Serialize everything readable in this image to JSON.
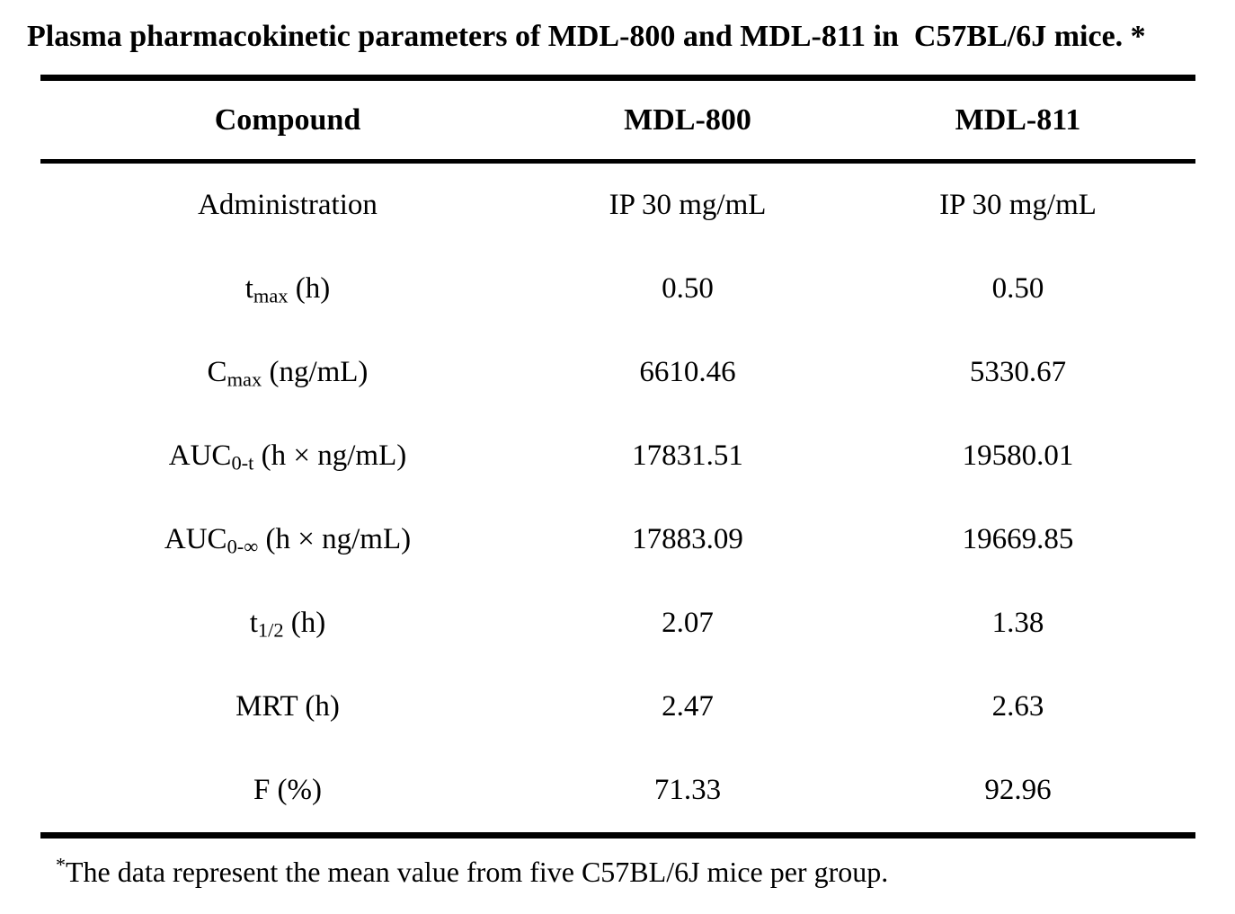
{
  "title": "Plasma pharmacokinetic parameters of MDL-800 and MDL-811 in  C57BL/6J mice. *",
  "header": {
    "compound": "Compound",
    "col_mdl800": "MDL-800",
    "col_mdl811": "MDL-811"
  },
  "rows": [
    {
      "label": {
        "base": "Administration",
        "sub": "",
        "rest": ""
      },
      "mdl800": "IP 30 mg/mL",
      "mdl811": "IP 30 mg/mL"
    },
    {
      "label": {
        "base": "t",
        "sub": "max",
        "rest": " (h)"
      },
      "mdl800": "0.50",
      "mdl811": "0.50"
    },
    {
      "label": {
        "base": "C",
        "sub": "max",
        "rest": " (ng/mL)"
      },
      "mdl800": "6610.46",
      "mdl811": "5330.67"
    },
    {
      "label": {
        "base": "AUC",
        "sub": "0-t",
        "rest": " (h × ng/mL)"
      },
      "mdl800": "17831.51",
      "mdl811": "19580.01"
    },
    {
      "label": {
        "base": "AUC",
        "sub": "0-∞",
        "rest": " (h × ng/mL)"
      },
      "mdl800": "17883.09",
      "mdl811": "19669.85"
    },
    {
      "label": {
        "base": "t",
        "sub": "1/2",
        "rest": " (h)"
      },
      "mdl800": "2.07",
      "mdl811": "1.38"
    },
    {
      "label": {
        "base": "MRT (h)",
        "sub": "",
        "rest": ""
      },
      "mdl800": "2.47",
      "mdl811": "2.63"
    },
    {
      "label": {
        "base": "F (%)",
        "sub": "",
        "rest": ""
      },
      "mdl800": "71.33",
      "mdl811": "92.96"
    }
  ],
  "footnote": {
    "marker": "*",
    "text": "The data represent the mean value from five C57BL/6J mice per group."
  },
  "colors": {
    "text": "#000000",
    "background": "#ffffff",
    "rule": "#000000"
  }
}
